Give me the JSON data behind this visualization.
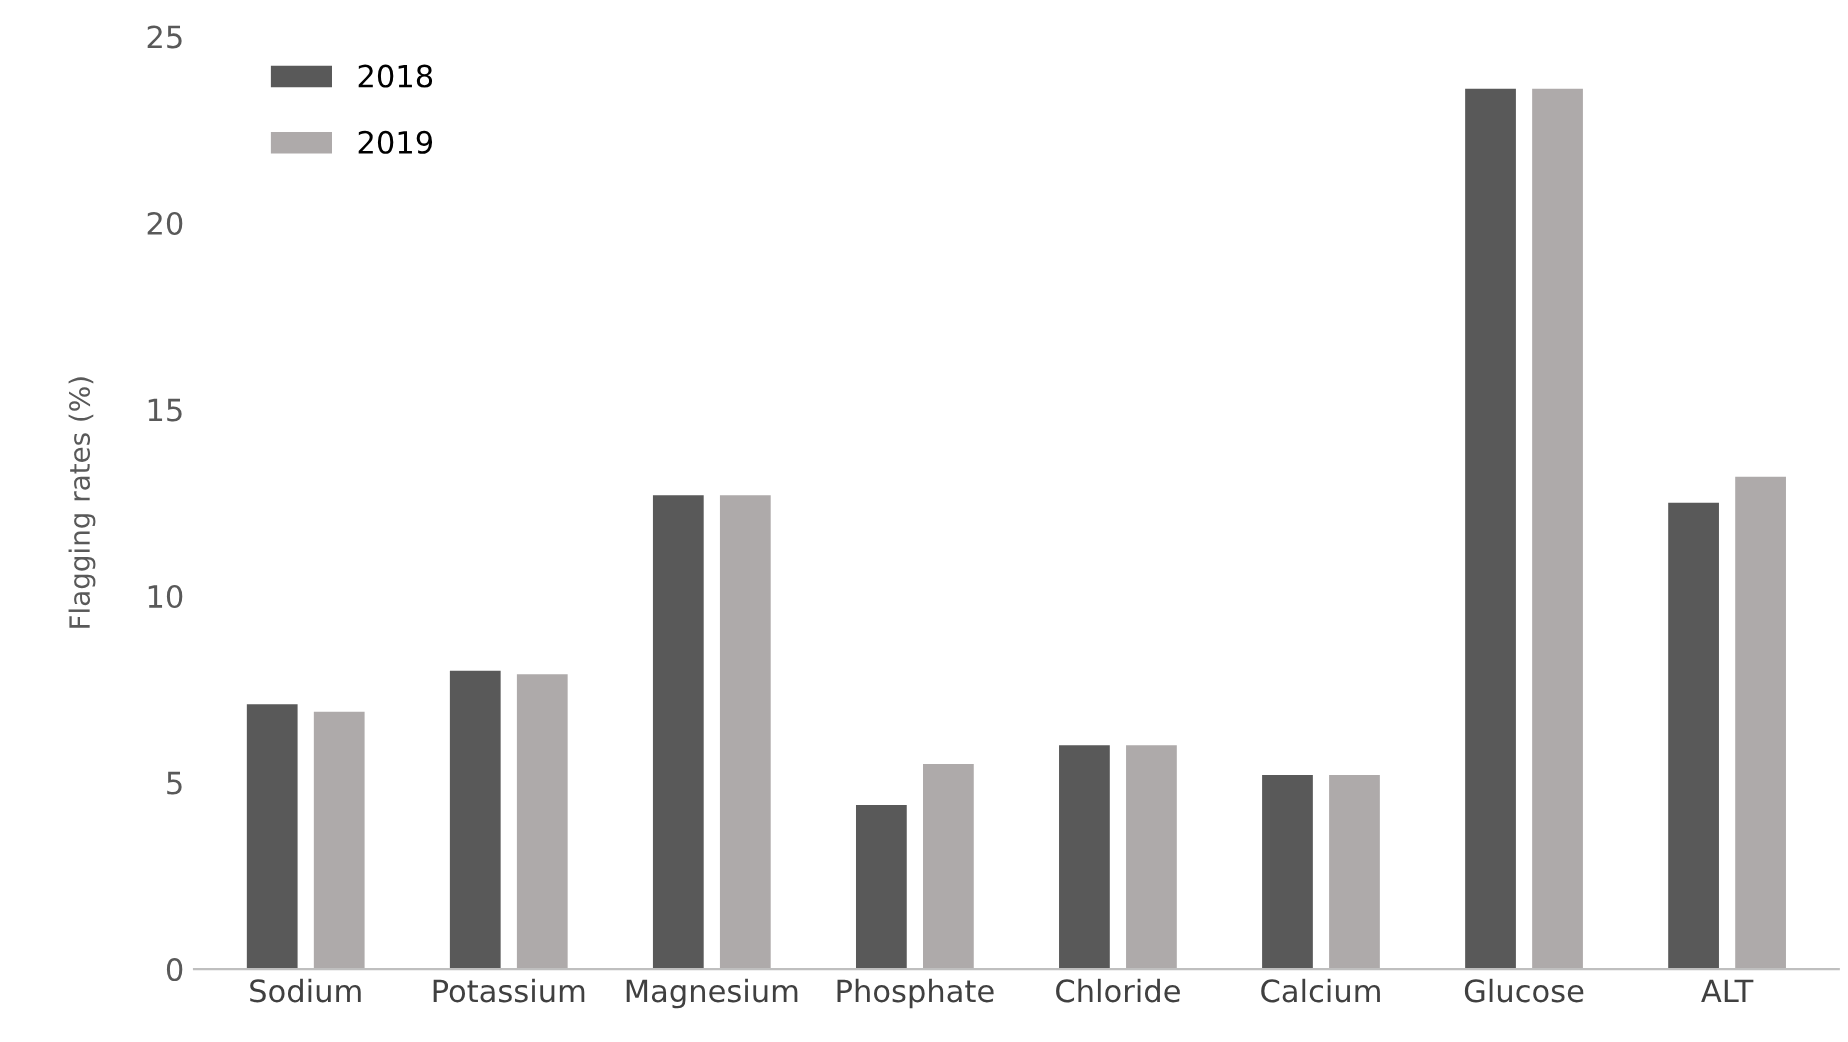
{
  "chart_data": {
    "type": "bar",
    "ylabel": "Flagging rates (%)",
    "categories": [
      "Sodium",
      "Potassium",
      "Magnesium",
      "Phosphate",
      "Chloride",
      "Calcium",
      "Glucose",
      "ALT"
    ],
    "series": [
      {
        "name": "2018",
        "color": "#595959",
        "values": [
          7.1,
          8.0,
          12.7,
          4.4,
          6.0,
          5.2,
          23.6,
          12.5
        ]
      },
      {
        "name": "2019",
        "color": "#aeaaaa",
        "values": [
          6.9,
          7.9,
          12.7,
          5.5,
          6.0,
          5.2,
          23.6,
          13.2
        ]
      }
    ],
    "ylim": [
      0,
      25
    ],
    "yticks": [
      0,
      5,
      10,
      15,
      20,
      25
    ],
    "grid": false,
    "legend": "top left"
  }
}
